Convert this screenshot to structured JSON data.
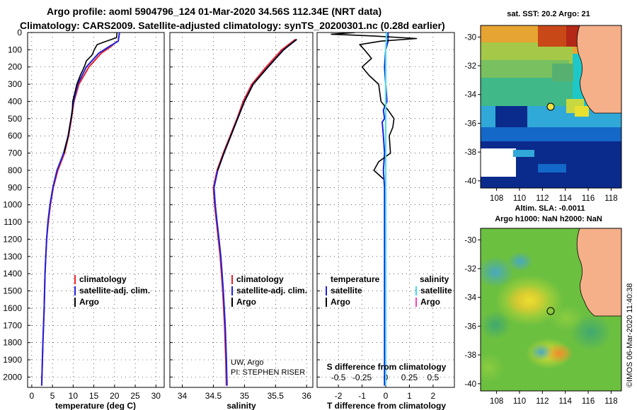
{
  "header": {
    "line1": "Argo profile: aoml 5904796_124 01-Mar-2020 34.56S 112.34E (NRT data)",
    "line2": "Climatology: CARS2009. Satellite-adjusted climatology: synTS_20200301.nc (0.28d earlier)"
  },
  "depth_axis": {
    "ticks": [
      0,
      100,
      200,
      300,
      400,
      500,
      600,
      700,
      800,
      900,
      1000,
      1100,
      1200,
      1300,
      1400,
      1500,
      1600,
      1700,
      1800,
      1900,
      2000
    ]
  },
  "colors": {
    "climatology": "#e8202a",
    "satellite": "#2020d8",
    "argo": "#000000",
    "satellite_salinity": "#40e0e8",
    "argo_salinity": "#ff40c0",
    "land": "#f5b089"
  },
  "chart_data": [
    {
      "type": "line",
      "name": "temperature-profile",
      "xlabel": "temperature (deg C)",
      "ylabel": "depth",
      "xlim": [
        -1,
        32
      ],
      "ylim": [
        2060,
        0
      ],
      "xticks": [
        0,
        5,
        10,
        15,
        20,
        25,
        30
      ],
      "grid": true,
      "legend": {
        "placement": "lower-right",
        "entries": [
          "climatology",
          "satellite-adj. clim.",
          "Argo"
        ]
      },
      "series": [
        {
          "name": "climatology",
          "depth": [
            50,
            80,
            120,
            200,
            300,
            400,
            500,
            600,
            700,
            800,
            900,
            1000,
            1100,
            1200,
            1300,
            1400,
            1600,
            1800,
            2050
          ],
          "values": [
            20.6,
            19.2,
            16.8,
            13.8,
            11.4,
            10.2,
            9.6,
            8.9,
            7.9,
            6.3,
            5.2,
            4.5,
            4.0,
            3.6,
            3.4,
            3.2,
            3.0,
            2.7,
            2.4
          ]
        },
        {
          "name": "satellite-adj. clim.",
          "depth": [
            0,
            50,
            80,
            120,
            200,
            300,
            400,
            500,
            600,
            700,
            800,
            900,
            1000,
            1100,
            1200,
            1300,
            1400,
            1600,
            1800,
            2050
          ],
          "values": [
            21.2,
            20.9,
            18.8,
            16.2,
            13.2,
            11.1,
            10.1,
            9.5,
            8.8,
            7.7,
            6.1,
            5.1,
            4.4,
            3.9,
            3.6,
            3.4,
            3.2,
            3.0,
            2.7,
            2.4
          ]
        },
        {
          "name": "Argo",
          "depth": [
            0,
            30,
            55,
            70,
            95,
            130,
            165,
            200,
            250,
            300,
            350,
            400,
            450,
            500,
            600,
            700
          ],
          "values": [
            20.6,
            20.5,
            17.5,
            15.8,
            15.2,
            14.6,
            13.2,
            12.7,
            11.7,
            10.9,
            10.4,
            9.9,
            9.8,
            9.5,
            8.8,
            7.8
          ]
        }
      ]
    },
    {
      "type": "line",
      "name": "salinity-profile",
      "xlabel": "salinity",
      "ylabel": "depth",
      "xlim": [
        33.8,
        36.1
      ],
      "ylim": [
        2060,
        0
      ],
      "xticks": [
        34,
        34.5,
        35,
        35.5,
        36
      ],
      "grid": true,
      "legend": {
        "placement": "lower-right",
        "entries": [
          "climatology",
          "satellite-adj. clim.",
          "Argo"
        ]
      },
      "series": [
        {
          "name": "climatology",
          "depth": [
            40,
            100,
            200,
            300,
            400,
            500,
            600,
            700,
            800,
            900,
            1000,
            1100,
            1200,
            1300,
            1400,
            1500,
            1700,
            1900,
            2050
          ],
          "values": [
            35.82,
            35.6,
            35.35,
            35.12,
            34.98,
            34.88,
            34.77,
            34.66,
            34.56,
            34.5,
            34.52,
            34.55,
            34.58,
            34.61,
            34.63,
            34.65,
            34.68,
            34.7,
            34.71
          ]
        },
        {
          "name": "satellite-adj. clim.",
          "depth": [
            40,
            100,
            200,
            300,
            400,
            500,
            600,
            700,
            800,
            900,
            1000,
            1100,
            1200,
            1300,
            1400,
            1500,
            1700,
            1900,
            2050
          ],
          "values": [
            35.84,
            35.63,
            35.38,
            35.14,
            35.0,
            34.89,
            34.78,
            34.67,
            34.57,
            34.51,
            34.53,
            34.56,
            34.59,
            34.62,
            34.64,
            34.66,
            34.69,
            34.71,
            34.72
          ]
        },
        {
          "name": "Argo",
          "depth": [
            40,
            100,
            200,
            300,
            400,
            500,
            600,
            700,
            800
          ],
          "values": [
            35.84,
            35.63,
            35.38,
            35.14,
            35.0,
            34.89,
            34.78,
            34.67,
            34.57
          ]
        }
      ],
      "annotations": [
        "UW, Argo",
        "PI: STEPHEN RISER"
      ]
    },
    {
      "type": "line",
      "name": "difference-profile",
      "xlabel": "T difference from climatology",
      "x2label": "S difference from climatology",
      "ylabel": "depth",
      "xlim": [
        -2.9,
        2.9
      ],
      "ylim": [
        2060,
        0
      ],
      "xticks": [
        -2,
        -1,
        0,
        1,
        2
      ],
      "x2ticks": [
        -0.5,
        -0.25,
        0,
        0.25,
        0.5
      ],
      "grid": true,
      "legend": {
        "placement": "lower",
        "entries": [
          "temperature",
          "satellite",
          "Argo",
          "salinity",
          "satellite",
          "Argo"
        ]
      },
      "series": [
        {
          "name": "T satellite",
          "depth": [
            0,
            50,
            100,
            200,
            300,
            400,
            450,
            500,
            520,
            600,
            700,
            800,
            900,
            1000,
            1500,
            2050
          ],
          "values": [
            0.1,
            0.1,
            0.0,
            -0.05,
            0.0,
            0.05,
            -0.1,
            -0.05,
            -0.15,
            -0.1,
            -0.05,
            -0.1,
            -0.05,
            -0.05,
            -0.05,
            -0.05
          ]
        },
        {
          "name": "T Argo",
          "depth": [
            0,
            10,
            20,
            35,
            50,
            70,
            100,
            150,
            200,
            250,
            300,
            400,
            450,
            500,
            550,
            600,
            700,
            750,
            800,
            850
          ],
          "values": [
            -1.3,
            -2.3,
            -0.5,
            1.3,
            -0.2,
            -1.1,
            -0.9,
            -0.6,
            -1.0,
            -0.7,
            -0.3,
            -0.2,
            0.1,
            0.35,
            0.3,
            0.15,
            0.2,
            -0.3,
            -0.5,
            -0.1
          ]
        },
        {
          "name": "S satellite",
          "depth": [
            0,
            50,
            100,
            300,
            500,
            1000,
            2050
          ],
          "values": [
            0.03,
            0.02,
            0.0,
            0.0,
            0.0,
            0.0,
            0.0
          ]
        }
      ]
    }
  ],
  "maps": {
    "sst": {
      "title": "sat. SST: 20.2 Argo: 21",
      "lat_ticks": [
        -30,
        -32,
        -34,
        -36,
        -38,
        -40
      ],
      "lon_ticks": [
        108,
        110,
        112,
        114,
        116,
        118
      ],
      "profile_lat": -34.56,
      "profile_lon": 112.34
    },
    "sla": {
      "title_line1": "Altim. SLA: -0.0011",
      "title_line2": "Argo h1000: NaN h2000: NaN",
      "lat_ticks": [
        -30,
        -32,
        -34,
        -36,
        -38,
        -40
      ],
      "lon_ticks": [
        108,
        110,
        112,
        114,
        116,
        118
      ],
      "profile_lat": -34.56,
      "profile_lon": 112.34
    }
  },
  "footer": {
    "stamp": "©IMOS 06-Mar-2020 11:40:38"
  }
}
